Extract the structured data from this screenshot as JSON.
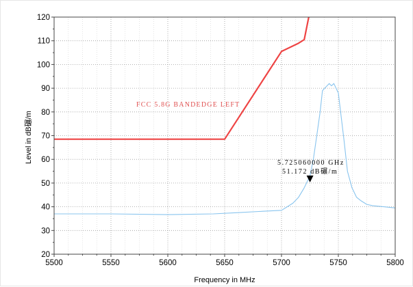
{
  "chart_data": {
    "type": "line",
    "xlabel": "Frequency in MHz",
    "ylabel": "Level in dB碾/m",
    "xlim": [
      5500,
      5800
    ],
    "ylim": [
      20,
      120
    ],
    "x_ticks": [
      "5500",
      "5550",
      "5600",
      "5650",
      "5700",
      "5750",
      "5800"
    ],
    "y_ticks": [
      "20",
      "30",
      "40",
      "50",
      "60",
      "70",
      "80",
      "90",
      "100",
      "110",
      "120"
    ],
    "grid": true,
    "series": [
      {
        "color": "#ee4444",
        "x": [
          5500,
          5650,
          5700,
          5715,
          5720,
          5724
        ],
        "y": [
          68.5,
          68.5,
          105.5,
          109,
          110.5,
          120
        ]
      },
      {
        "color": "#88c4ee",
        "x": [
          5500,
          5550,
          5600,
          5640,
          5660,
          5680,
          5700,
          5705,
          5710,
          5715,
          5720,
          5725,
          5728,
          5731,
          5734,
          5736,
          5738,
          5740,
          5742,
          5744,
          5746,
          5748,
          5750,
          5752,
          5755,
          5758,
          5762,
          5766,
          5770,
          5775,
          5780,
          5790,
          5800
        ],
        "y": [
          37,
          37,
          36.7,
          37,
          37.5,
          38,
          38.5,
          40,
          41.5,
          44,
          48,
          53,
          60,
          70,
          80,
          89,
          90,
          91,
          92,
          91,
          92,
          90,
          88,
          80,
          68,
          55,
          48,
          44,
          42.5,
          41,
          40.5,
          40,
          39.5
        ]
      }
    ],
    "annotations": [
      {
        "text": "FCC 5.8G BANDEDGE LEFT",
        "color": "#e05050"
      },
      {
        "text": "5.725060000 GHz"
      },
      {
        "text": "51.172 dB碾/m"
      }
    ],
    "marker": {
      "x": 5725.06,
      "y": 51.172
    }
  }
}
